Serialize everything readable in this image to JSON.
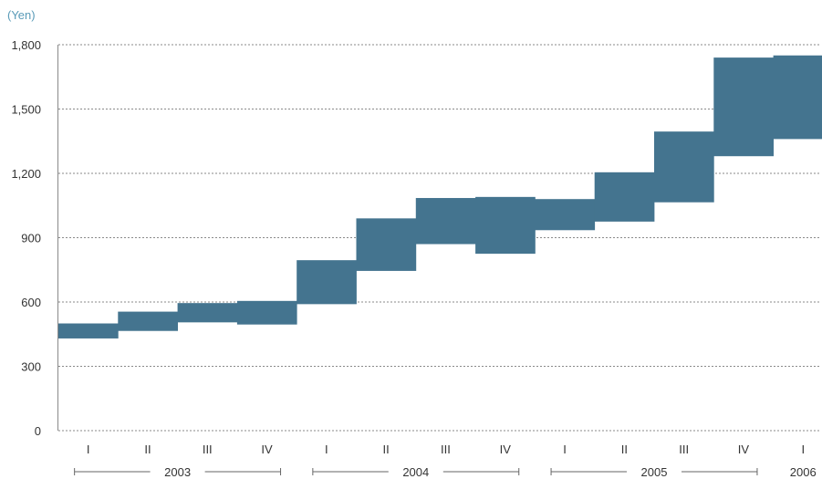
{
  "chart_data": {
    "type": "bar",
    "subtype": "floating-range",
    "ylabel": "(Yen)",
    "ylim": [
      0,
      1800
    ],
    "yticks": [
      0,
      300,
      600,
      900,
      1200,
      1500,
      1800
    ],
    "ytick_labels": [
      "0",
      "300",
      "600",
      "900",
      "1,200",
      "1,500",
      "1,800"
    ],
    "grid": true,
    "color": "#44748f",
    "categories": [
      "I",
      "II",
      "III",
      "IV",
      "I",
      "II",
      "III",
      "IV",
      "I",
      "II",
      "III",
      "IV",
      "I"
    ],
    "years": [
      {
        "label": "2003",
        "start": 0,
        "end": 3
      },
      {
        "label": "2004",
        "start": 4,
        "end": 7
      },
      {
        "label": "2005",
        "start": 8,
        "end": 11
      },
      {
        "label": "2006",
        "start": 12,
        "end": 12
      }
    ],
    "high": [
      500,
      555,
      595,
      605,
      795,
      990,
      1085,
      1090,
      1080,
      1205,
      1395,
      1740,
      1750
    ],
    "low": [
      430,
      465,
      505,
      495,
      590,
      745,
      870,
      825,
      935,
      975,
      1065,
      1280,
      1360
    ]
  }
}
